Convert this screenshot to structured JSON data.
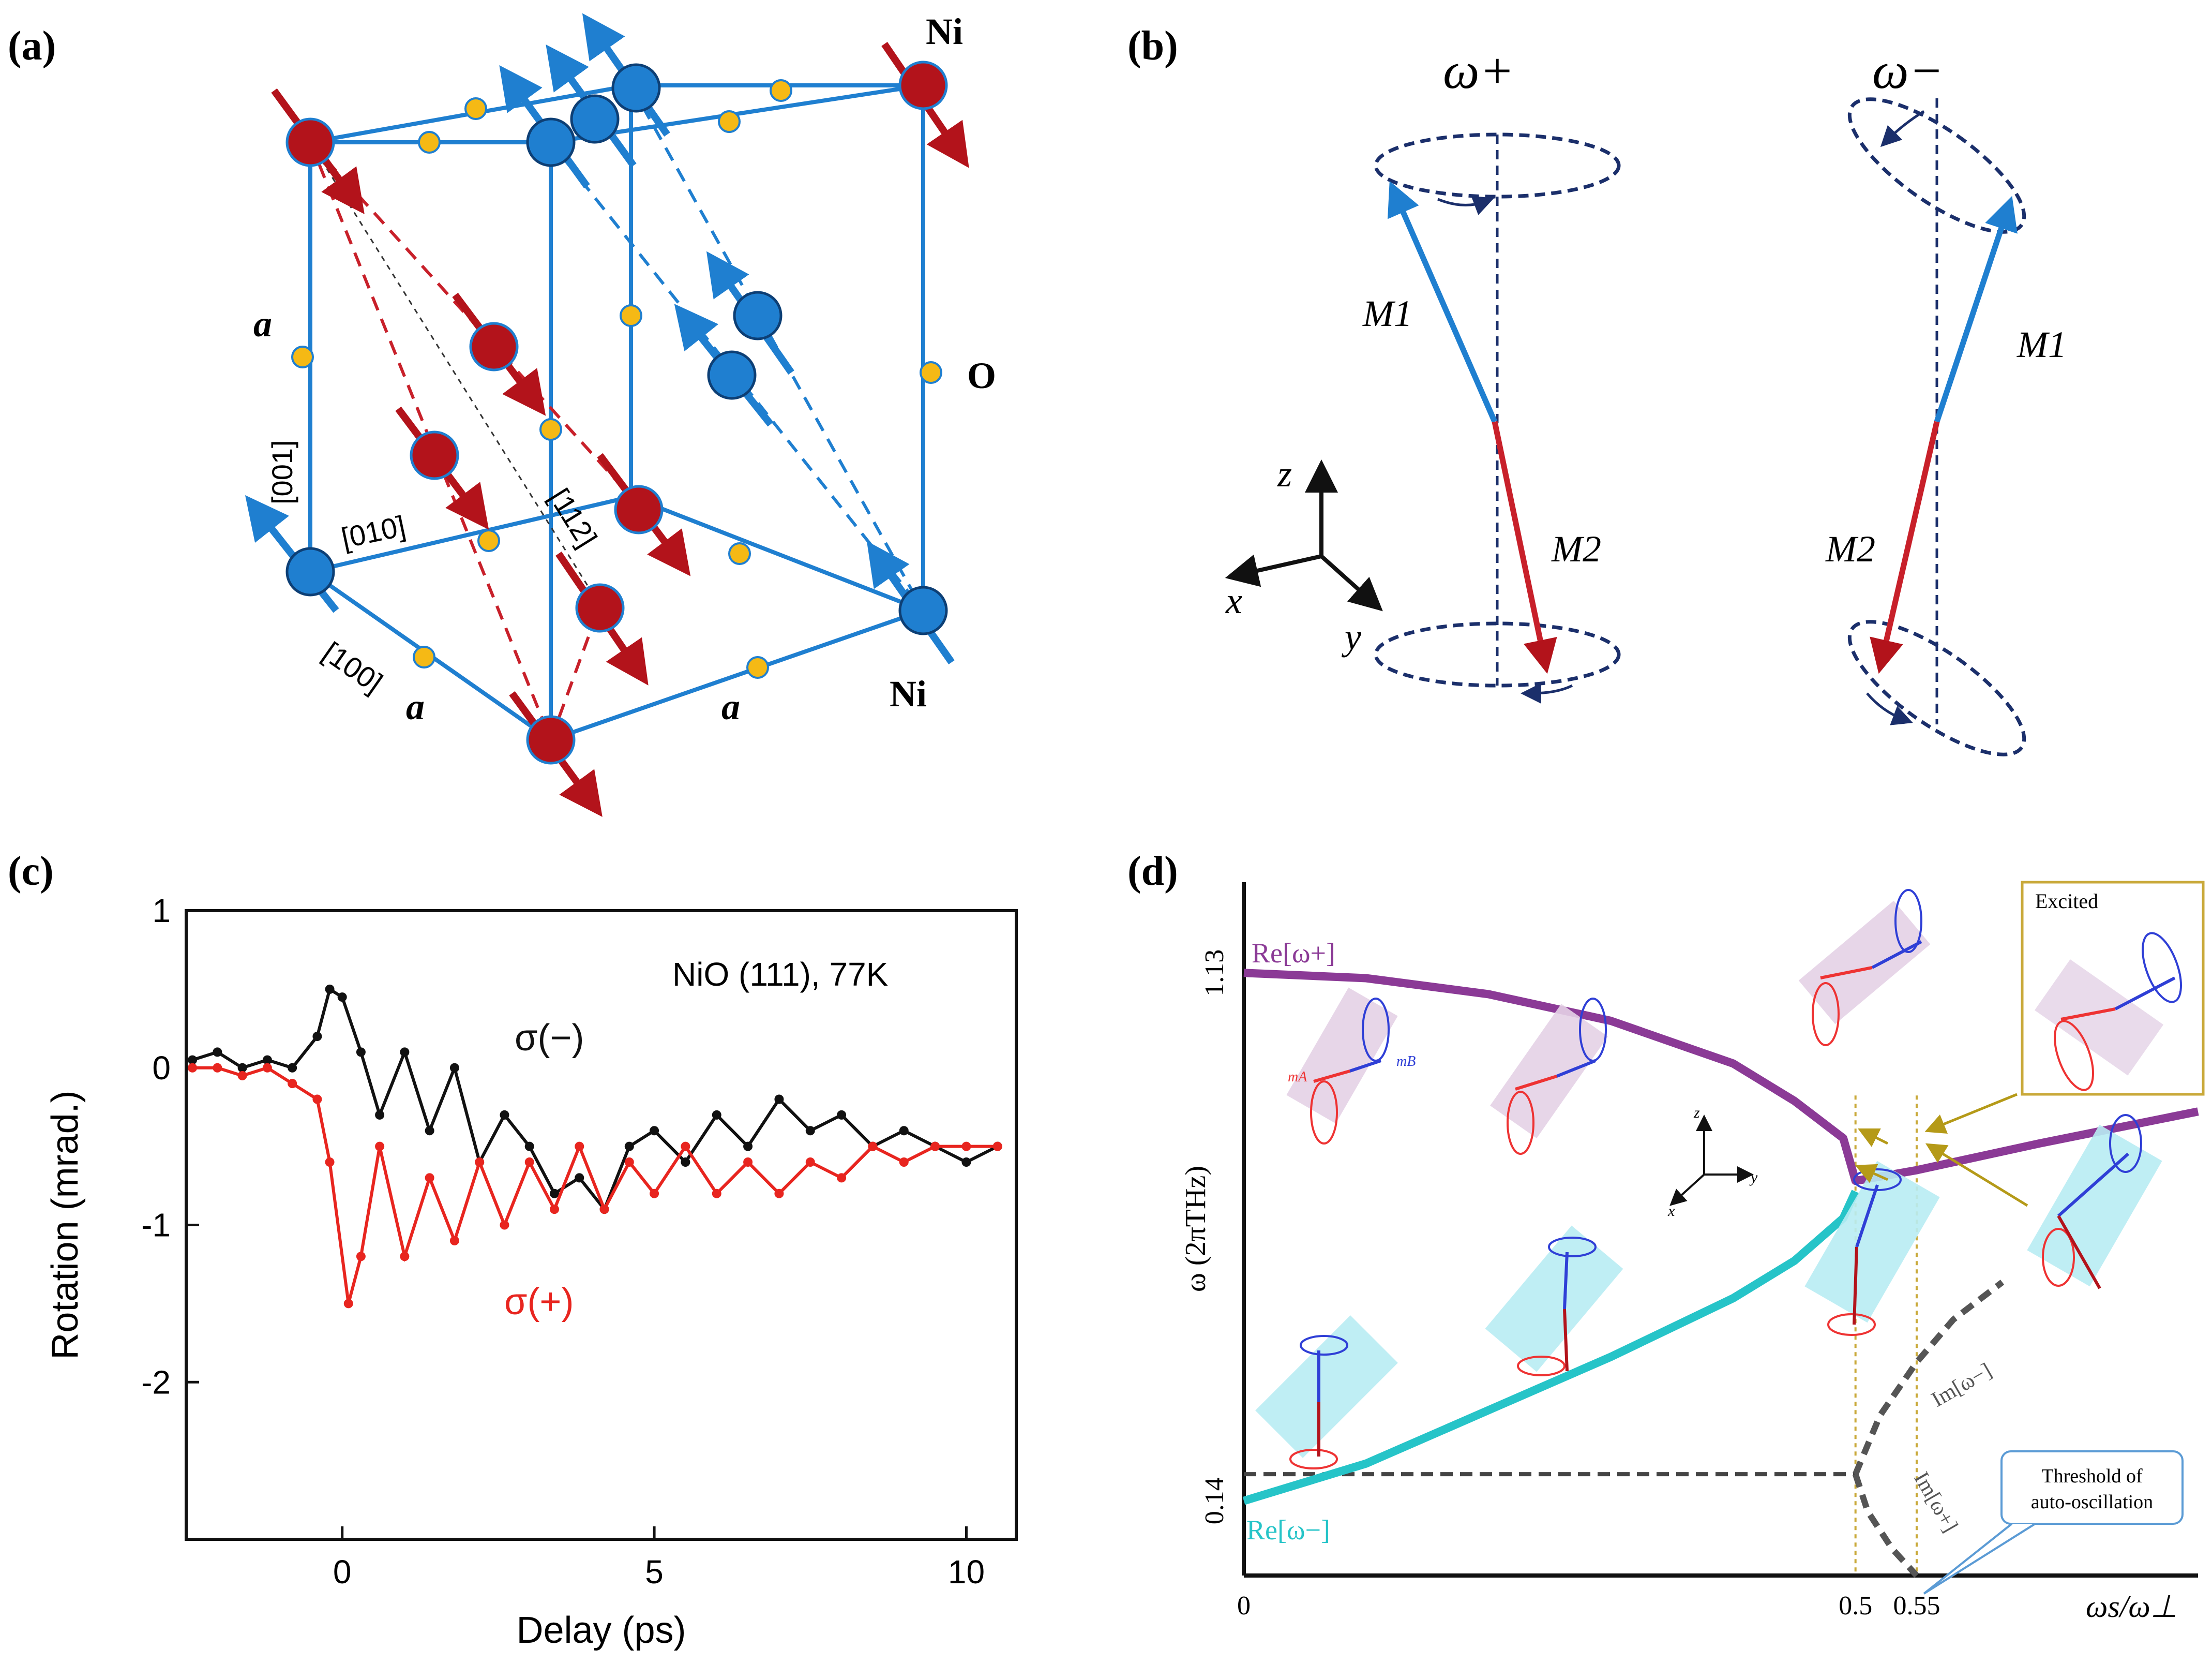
{
  "panels": {
    "a": {
      "label": "(a)",
      "atom_ni_top": "Ni",
      "atom_ni_bottom": "Ni",
      "atom_o": "O",
      "lattice_a_left": "a",
      "lattice_a_bottom_left": "a",
      "lattice_a_bottom_right": "a",
      "dir_001": "[001]",
      "dir_010": "[010]",
      "dir_100": "[100]",
      "dir_112": "[112]"
    },
    "b": {
      "label": "(b)",
      "omega_plus": "ω+",
      "omega_minus": "ω−",
      "m1_left": "M1",
      "m2_left": "M2",
      "m1_right": "M1",
      "m2_right": "M2",
      "axis_z": "z",
      "axis_x": "x",
      "axis_y": "y"
    },
    "c": {
      "label": "(c)",
      "legend_title": "NiO (111), 77K",
      "sigma_minus": "σ(−)",
      "sigma_plus": "σ(+)"
    },
    "d": {
      "label": "(d)",
      "re_plus": "Re[ω+]",
      "re_minus": "Re[ω−]",
      "im_minus": "Im[ω−]",
      "im_plus": "Im[ω+]",
      "excited": "Excited",
      "threshold_line1": "Threshold of",
      "threshold_line2": "auto-oscillation",
      "mA": "mA",
      "mB": "mB",
      "axis_z": "z",
      "axis_x": "x",
      "axis_y": "y"
    }
  },
  "chart_data": [
    {
      "panel": "c",
      "type": "scatter",
      "title": "",
      "xlabel": "Delay (ps)",
      "ylabel": "Rotation (mrad.)",
      "xlim": [
        -2.5,
        10.8
      ],
      "ylim": [
        -3.0,
        1.0
      ],
      "xticks": [
        0,
        5,
        10
      ],
      "xtick_labels": [
        "0",
        "5",
        "10"
      ],
      "yticks": [
        1,
        0,
        -1,
        -2
      ],
      "ytick_labels": [
        "1",
        "0",
        "-1",
        "-2"
      ],
      "series": [
        {
          "name": "σ(−)",
          "color": "#111111",
          "x": [
            -2.4,
            -2.0,
            -1.6,
            -1.2,
            -0.8,
            -0.4,
            -0.2,
            0.0,
            0.3,
            0.6,
            1.0,
            1.4,
            1.8,
            2.2,
            2.6,
            3.0,
            3.4,
            3.8,
            4.2,
            4.6,
            5.0,
            5.5,
            6.0,
            6.5,
            7.0,
            7.5,
            8.0,
            8.5,
            9.0,
            9.5,
            10.0,
            10.5
          ],
          "y": [
            0.05,
            0.1,
            0.0,
            0.05,
            0.0,
            0.2,
            0.5,
            0.45,
            0.1,
            -0.3,
            0.1,
            -0.4,
            0.0,
            -0.6,
            -0.3,
            -0.5,
            -0.8,
            -0.7,
            -0.9,
            -0.5,
            -0.4,
            -0.6,
            -0.3,
            -0.5,
            -0.2,
            -0.4,
            -0.3,
            -0.5,
            -0.4,
            -0.5,
            -0.6,
            -0.5
          ]
        },
        {
          "name": "σ(+)",
          "color": "#e8251f",
          "x": [
            -2.4,
            -2.0,
            -1.6,
            -1.2,
            -0.8,
            -0.4,
            -0.2,
            0.1,
            0.3,
            0.6,
            1.0,
            1.4,
            1.8,
            2.2,
            2.6,
            3.0,
            3.4,
            3.8,
            4.2,
            4.6,
            5.0,
            5.5,
            6.0,
            6.5,
            7.0,
            7.5,
            8.0,
            8.5,
            9.0,
            9.5,
            10.0,
            10.5
          ],
          "y": [
            0.0,
            0.0,
            -0.05,
            0.0,
            -0.1,
            -0.2,
            -0.6,
            -1.5,
            -1.2,
            -0.5,
            -1.2,
            -0.7,
            -1.1,
            -0.6,
            -1.0,
            -0.6,
            -0.9,
            -0.5,
            -0.9,
            -0.6,
            -0.8,
            -0.5,
            -0.8,
            -0.6,
            -0.8,
            -0.6,
            -0.7,
            -0.5,
            -0.6,
            -0.5,
            -0.5,
            -0.5
          ]
        }
      ],
      "annotation": "NiO (111), 77K"
    },
    {
      "panel": "d",
      "type": "line",
      "xlabel": "ωs/ω⊥",
      "ylabel": "ω (2πTHz)",
      "xlim": [
        0,
        0.78
      ],
      "ylim": [
        0.0,
        1.3
      ],
      "xticks": [
        0,
        0.5,
        0.55
      ],
      "xtick_labels": [
        "0",
        "0.5",
        "0.55"
      ],
      "yticks": [
        0.14,
        1.13
      ],
      "ytick_labels": [
        "0.14",
        "1.13"
      ],
      "series": [
        {
          "name": "Re[ω+]",
          "color": "#8b3a96",
          "x": [
            0.0,
            0.1,
            0.2,
            0.3,
            0.4,
            0.45,
            0.49,
            0.5,
            0.55,
            0.65,
            0.78
          ],
          "y": [
            1.13,
            1.12,
            1.09,
            1.04,
            0.96,
            0.89,
            0.82,
            0.74,
            0.76,
            0.81,
            0.87
          ]
        },
        {
          "name": "Re[ω−]",
          "color": "#26c4c8",
          "x": [
            0.0,
            0.1,
            0.2,
            0.3,
            0.4,
            0.45,
            0.49,
            0.5
          ],
          "y": [
            0.14,
            0.21,
            0.31,
            0.41,
            0.52,
            0.59,
            0.67,
            0.72
          ]
        },
        {
          "name": "Im[ω−]",
          "color": "#555555",
          "x": [
            0.5,
            0.52,
            0.55,
            0.58,
            0.62
          ],
          "y": [
            0.19,
            0.3,
            0.4,
            0.48,
            0.55
          ]
        },
        {
          "name": "Im[ω+]",
          "color": "#555555",
          "x": [
            0.5,
            0.51,
            0.53,
            0.55
          ],
          "y": [
            0.19,
            0.12,
            0.05,
            0.0
          ]
        }
      ],
      "reference_lines": [
        {
          "type": "horizontal",
          "y": 0.19,
          "style": "dashed"
        },
        {
          "type": "vertical",
          "x": 0.5,
          "style": "dotted"
        },
        {
          "type": "vertical",
          "x": 0.55,
          "style": "dotted"
        }
      ]
    }
  ]
}
